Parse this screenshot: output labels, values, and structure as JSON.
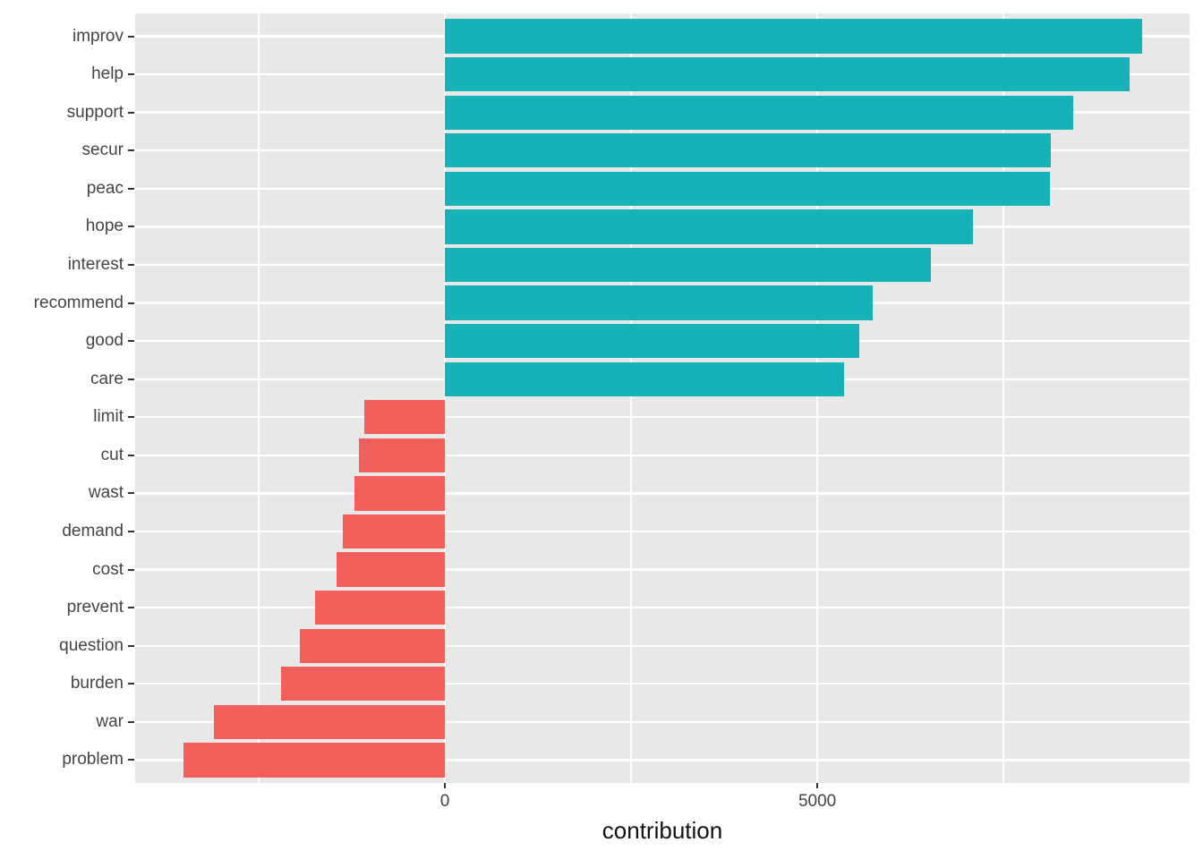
{
  "chart_data": {
    "type": "bar",
    "orientation": "horizontal",
    "title": "",
    "xlabel": "contribution",
    "ylabel": "",
    "categories": [
      "improv",
      "help",
      "support",
      "secur",
      "peac",
      "hope",
      "interest",
      "recommend",
      "good",
      "care",
      "limit",
      "cut",
      "wast",
      "demand",
      "cost",
      "prevent",
      "question",
      "burden",
      "war",
      "problem"
    ],
    "values": [
      9365,
      9195,
      8440,
      8140,
      8125,
      7090,
      6525,
      5745,
      5565,
      5360,
      -1085,
      -1155,
      -1215,
      -1370,
      -1455,
      -1745,
      -1945,
      -2200,
      -3100,
      -3510
    ],
    "xlim": [
      -4160,
      10000
    ],
    "x_major_ticks": [
      0,
      5000
    ],
    "x_tick_labels": [
      "0",
      "5000"
    ],
    "x_minor_gridlines": [
      -2500,
      2500,
      7500
    ],
    "grid": true,
    "legend_position": "none",
    "colors": {
      "positive": "#16B2B7",
      "negative": "#F35F5B",
      "panel_background": "#E8E8E8",
      "gridline": "#FFFFFF",
      "tick_mark": "#333333",
      "tick_text": "#444444",
      "axis_title_text": "#111111"
    }
  }
}
